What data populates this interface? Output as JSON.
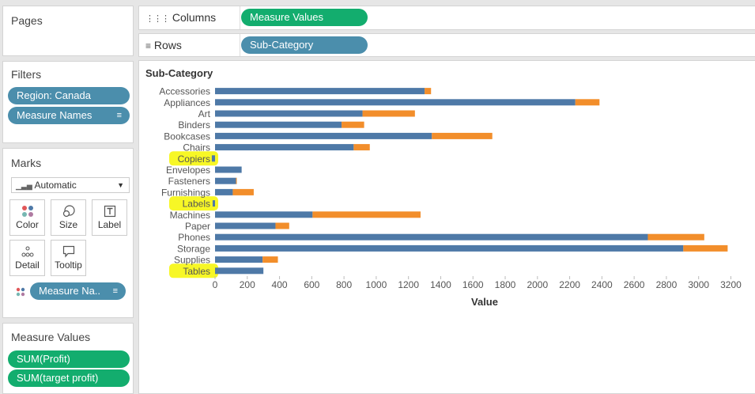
{
  "pages_panel": {
    "title": "Pages"
  },
  "filters_panel": {
    "title": "Filters",
    "pills": [
      "Region: Canada",
      "Measure Names"
    ]
  },
  "marks_panel": {
    "title": "Marks",
    "mark_type": "Automatic",
    "buttons": {
      "color": "Color",
      "size": "Size",
      "label": "Label",
      "detail": "Detail",
      "tooltip": "Tooltip"
    },
    "color_pill": "Measure Na.."
  },
  "measure_values_panel": {
    "title": "Measure Values",
    "pills": [
      "SUM(Profit)",
      "SUM(target profit)"
    ]
  },
  "shelves": {
    "columns_label": "Columns",
    "columns_pill": "Measure Values",
    "rows_label": "Rows",
    "rows_pill": "Sub-Category"
  },
  "colors": {
    "profit": "#4e79a7",
    "target": "#f28e2b",
    "highlight": "#f6f600",
    "blue_pill": "#4b8eac",
    "green_pill": "#13ad6e"
  },
  "chart_data": {
    "type": "bar",
    "orientation": "horizontal",
    "stacked": true,
    "row_header": "Sub-Category",
    "xlabel": "Value",
    "xlim": [
      0,
      3300
    ],
    "ticks": [
      0,
      200,
      400,
      600,
      800,
      1000,
      1200,
      1400,
      1600,
      1800,
      2000,
      2200,
      2400,
      2600,
      2800,
      3000,
      3200
    ],
    "categories": [
      "Accessories",
      "Appliances",
      "Art",
      "Binders",
      "Bookcases",
      "Chairs",
      "Copiers",
      "Envelopes",
      "Fasteners",
      "Furnishings",
      "Labels",
      "Machines",
      "Paper",
      "Phones",
      "Storage",
      "Supplies",
      "Tables"
    ],
    "highlighted_categories": [
      "Copiers",
      "Labels",
      "Tables"
    ],
    "series": [
      {
        "name": "SUM(Profit)",
        "values": [
          1300,
          2235,
          915,
          785,
          1345,
          860,
          -20,
          165,
          130,
          110,
          -15,
          605,
          375,
          2685,
          2905,
          295,
          300
        ]
      },
      {
        "name": "SUM(target profit)",
        "values": [
          40,
          150,
          325,
          140,
          375,
          100,
          0,
          0,
          5,
          130,
          0,
          670,
          85,
          350,
          275,
          95,
          0
        ]
      }
    ],
    "grid": false,
    "legend": "none"
  }
}
